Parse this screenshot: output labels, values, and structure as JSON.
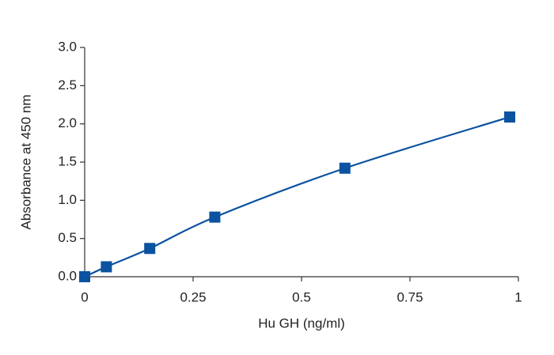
{
  "chart_data": {
    "type": "line",
    "x_label": "Hu GH (ng/ml)",
    "y_label": "Absorbance at 450 nm",
    "x": [
      0,
      0.05,
      0.15,
      0.3,
      0.6,
      0.98
    ],
    "values": [
      0,
      0.13,
      0.37,
      0.78,
      1.42,
      2.09
    ],
    "color": "#0b52a0",
    "xlim": [
      0,
      1
    ],
    "xticks": [
      0,
      0.25,
      0.5,
      0.75,
      1
    ],
    "ylim": [
      0,
      3
    ],
    "yticks": [
      {
        "value": 0,
        "label": "0.0"
      },
      0.5,
      {
        "value": 1,
        "label": "1.0"
      },
      1.5,
      {
        "value": 2,
        "label": "2.0"
      },
      2.5,
      {
        "value": 3,
        "label": "3.0"
      }
    ],
    "grid": false
  }
}
